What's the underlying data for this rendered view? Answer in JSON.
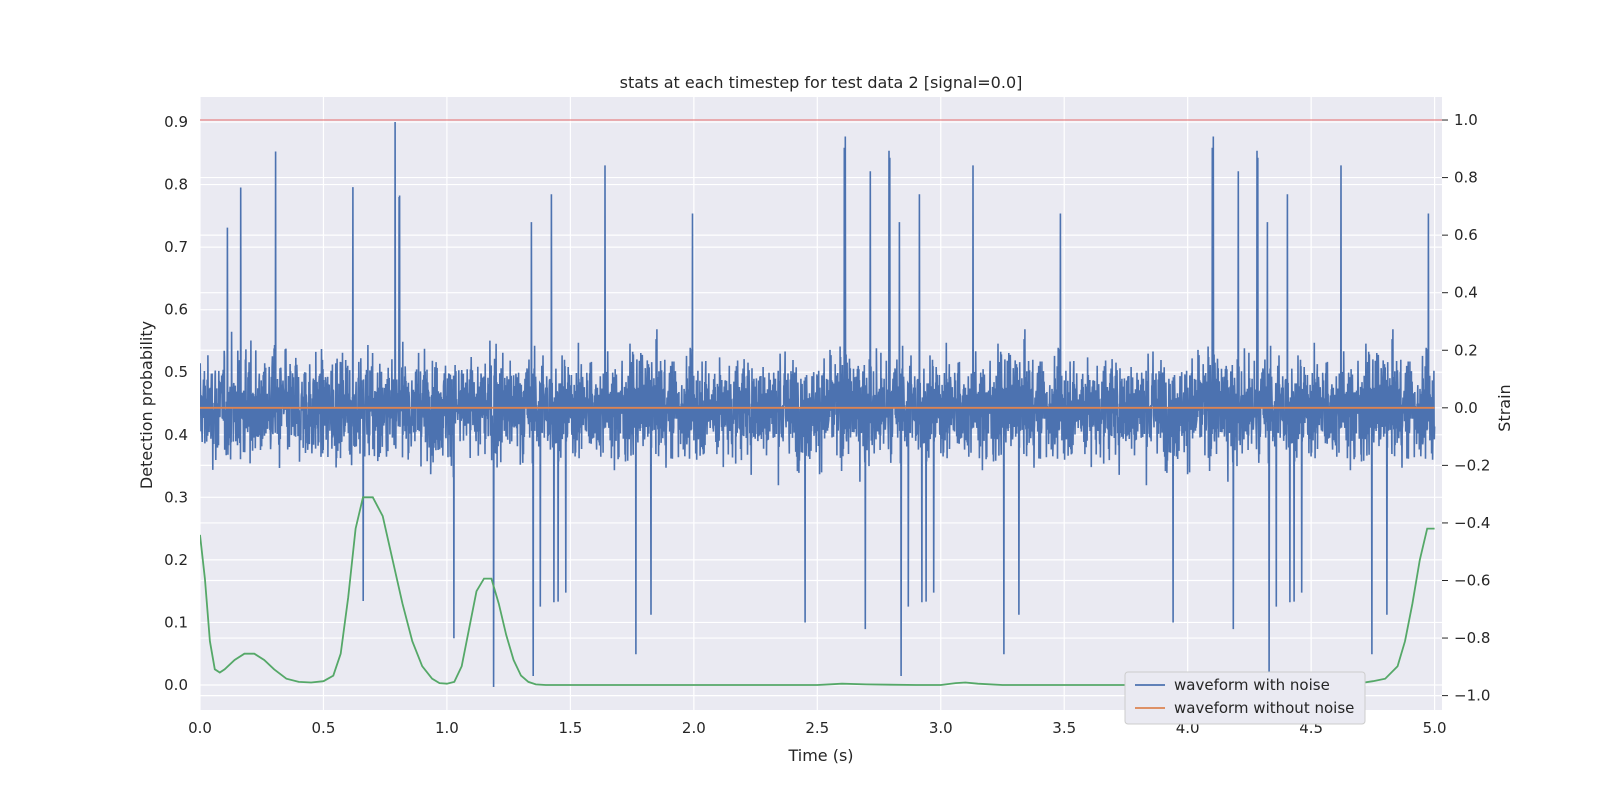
{
  "chart_data": {
    "type": "line",
    "title": "stats at each timestep for test data 2 [signal=0.0]",
    "xlabel": "Time (s)",
    "ylabel_left": "Detection probability",
    "ylabel_right": "Strain",
    "xlim": [
      0.0,
      5.03
    ],
    "ylim_left": [
      -0.04,
      0.94
    ],
    "ylim_right": [
      -1.05,
      1.08
    ],
    "x_ticks": [
      "0.0",
      "0.5",
      "1.0",
      "1.5",
      "2.0",
      "2.5",
      "3.0",
      "3.5",
      "4.0",
      "4.5",
      "5.0"
    ],
    "y_ticks_left": [
      "0.0",
      "0.1",
      "0.2",
      "0.3",
      "0.4",
      "0.5",
      "0.6",
      "0.7",
      "0.8",
      "0.9"
    ],
    "y_ticks_right": [
      "−1.0",
      "−0.8",
      "−0.6",
      "−0.4",
      "−0.2",
      "0.0",
      "0.2",
      "0.4",
      "0.6",
      "0.8",
      "1.0"
    ],
    "grid": true,
    "legend_position": "lower-right",
    "threshold_line": {
      "axis": "right",
      "value": 1.0,
      "color": "#e06666"
    },
    "series": [
      {
        "name": "waveform with noise",
        "axis": "right",
        "color": "#4c72b0",
        "noise_amplitude_range": [
          -0.97,
          1.0
        ]
      },
      {
        "name": "waveform without noise",
        "axis": "right",
        "color": "#dd8452",
        "values_constant": 0.0
      },
      {
        "axis": "left",
        "color": "#55a868",
        "x": [
          0.0,
          0.02,
          0.04,
          0.06,
          0.08,
          0.1,
          0.14,
          0.18,
          0.22,
          0.26,
          0.3,
          0.35,
          0.4,
          0.45,
          0.5,
          0.54,
          0.57,
          0.6,
          0.63,
          0.66,
          0.7,
          0.74,
          0.78,
          0.82,
          0.86,
          0.9,
          0.94,
          0.97,
          1.0,
          1.03,
          1.06,
          1.09,
          1.12,
          1.15,
          1.18,
          1.21,
          1.24,
          1.27,
          1.3,
          1.33,
          1.36,
          1.4,
          1.5,
          2.0,
          2.5,
          2.6,
          2.7,
          2.9,
          3.0,
          3.06,
          3.1,
          3.15,
          3.25,
          3.5,
          4.0,
          4.5,
          4.6,
          4.7,
          4.75,
          4.8,
          4.85,
          4.88,
          4.91,
          4.94,
          4.97,
          5.0
        ],
        "y": [
          0.24,
          0.17,
          0.07,
          0.025,
          0.02,
          0.025,
          0.04,
          0.05,
          0.05,
          0.04,
          0.025,
          0.01,
          0.005,
          0.004,
          0.006,
          0.015,
          0.05,
          0.14,
          0.25,
          0.3,
          0.3,
          0.27,
          0.2,
          0.13,
          0.07,
          0.03,
          0.01,
          0.003,
          0.002,
          0.005,
          0.03,
          0.09,
          0.15,
          0.17,
          0.17,
          0.13,
          0.08,
          0.04,
          0.015,
          0.005,
          0.001,
          0.0,
          0.0,
          0.0,
          0.0,
          0.002,
          0.001,
          0.0,
          0.0,
          0.003,
          0.004,
          0.002,
          0.0,
          0.0,
          0.0,
          0.0,
          0.001,
          0.003,
          0.006,
          0.01,
          0.03,
          0.07,
          0.13,
          0.2,
          0.25,
          0.25
        ]
      }
    ]
  }
}
